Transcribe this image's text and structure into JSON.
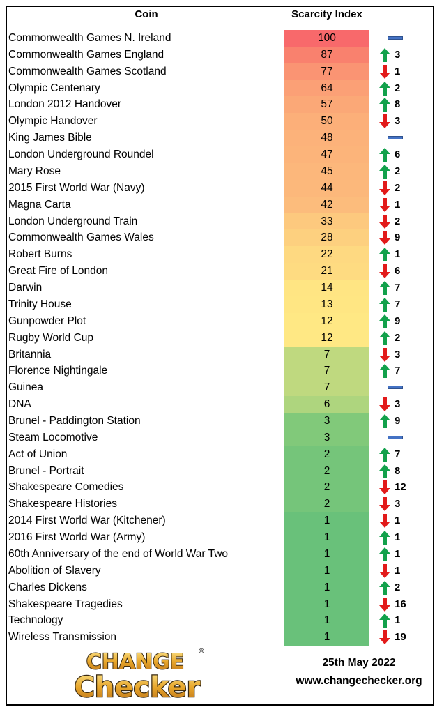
{
  "header": {
    "coin_label": "Coin",
    "index_label": "Scarcity Index"
  },
  "chart_data": {
    "type": "table",
    "columns": [
      "Coin",
      "Scarcity Index"
    ],
    "rows": [
      {
        "coin": "Commonwealth Games N. Ireland",
        "index": 100,
        "trend": "none",
        "change": "",
        "color": "#f8696b"
      },
      {
        "coin": "Commonwealth Games England",
        "index": 87,
        "trend": "up",
        "change": "3",
        "color": "#f9816e"
      },
      {
        "coin": "Commonwealth Games Scotland",
        "index": 77,
        "trend": "down",
        "change": "1",
        "color": "#fa9473"
      },
      {
        "coin": "Olympic Centenary",
        "index": 64,
        "trend": "up",
        "change": "2",
        "color": "#fba076"
      },
      {
        "coin": "London 2012 Handover",
        "index": 57,
        "trend": "up",
        "change": "8",
        "color": "#fba877"
      },
      {
        "coin": "Olympic Handover",
        "index": 50,
        "trend": "down",
        "change": "3",
        "color": "#fcaf79"
      },
      {
        "coin": "King James Bible",
        "index": 48,
        "trend": "none",
        "change": "",
        "color": "#fcb27a"
      },
      {
        "coin": "London Underground Roundel",
        "index": 47,
        "trend": "up",
        "change": "6",
        "color": "#fcb47a"
      },
      {
        "coin": "Mary Rose",
        "index": 45,
        "trend": "up",
        "change": "2",
        "color": "#fcb77b"
      },
      {
        "coin": "2015 First World War (Navy)",
        "index": 44,
        "trend": "down",
        "change": "2",
        "color": "#fcb87b"
      },
      {
        "coin": "Magna Carta",
        "index": 42,
        "trend": "down",
        "change": "1",
        "color": "#fcbc7c"
      },
      {
        "coin": "London Underground Train",
        "index": 33,
        "trend": "down",
        "change": "2",
        "color": "#fdc97e"
      },
      {
        "coin": "Commonwealth Games Wales",
        "index": 28,
        "trend": "down",
        "change": "9",
        "color": "#fdd07f"
      },
      {
        "coin": "Robert Burns",
        "index": 22,
        "trend": "up",
        "change": "1",
        "color": "#fed981"
      },
      {
        "coin": "Great Fire of London",
        "index": 21,
        "trend": "down",
        "change": "6",
        "color": "#fedb81"
      },
      {
        "coin": "Darwin",
        "index": 14,
        "trend": "up",
        "change": "7",
        "color": "#ffe583"
      },
      {
        "coin": "Trinity House",
        "index": 13,
        "trend": "up",
        "change": "7",
        "color": "#ffe683"
      },
      {
        "coin": "Gunpowder Plot",
        "index": 12,
        "trend": "up",
        "change": "9",
        "color": "#ffe884"
      },
      {
        "coin": "Rugby World Cup",
        "index": 12,
        "trend": "up",
        "change": "2",
        "color": "#ffe884"
      },
      {
        "coin": "Britannia",
        "index": 7,
        "trend": "down",
        "change": "3",
        "color": "#bfd97f"
      },
      {
        "coin": "Florence Nightingale",
        "index": 7,
        "trend": "up",
        "change": "7",
        "color": "#bfd97f"
      },
      {
        "coin": "Guinea",
        "index": 7,
        "trend": "none",
        "change": "",
        "color": "#bfd97f"
      },
      {
        "coin": "DNA",
        "index": 6,
        "trend": "down",
        "change": "3",
        "color": "#aed57e"
      },
      {
        "coin": "Brunel - Paddington Station",
        "index": 3,
        "trend": "up",
        "change": "9",
        "color": "#81c97a"
      },
      {
        "coin": "Steam Locomotive",
        "index": 3,
        "trend": "none",
        "change": "",
        "color": "#81c97a"
      },
      {
        "coin": "Act of Union",
        "index": 2,
        "trend": "up",
        "change": "7",
        "color": "#75c57a"
      },
      {
        "coin": "Brunel - Portrait",
        "index": 2,
        "trend": "up",
        "change": "8",
        "color": "#75c57a"
      },
      {
        "coin": "Shakespeare Comedies",
        "index": 2,
        "trend": "down",
        "change": "12",
        "color": "#75c57a"
      },
      {
        "coin": "Shakespeare Histories",
        "index": 2,
        "trend": "down",
        "change": "3",
        "color": "#75c57a"
      },
      {
        "coin": "2014 First World War (Kitchener)",
        "index": 1,
        "trend": "down",
        "change": "1",
        "color": "#69c17a"
      },
      {
        "coin": "2016 First World War (Army)",
        "index": 1,
        "trend": "up",
        "change": "1",
        "color": "#69c17a"
      },
      {
        "coin": "60th Anniversary of the end of World War Two",
        "index": 1,
        "trend": "up",
        "change": "1",
        "color": "#69c17a"
      },
      {
        "coin": "Abolition of Slavery",
        "index": 1,
        "trend": "down",
        "change": "1",
        "color": "#69c17a"
      },
      {
        "coin": "Charles Dickens",
        "index": 1,
        "trend": "up",
        "change": "2",
        "color": "#69c17a"
      },
      {
        "coin": "Shakespeare Tragedies",
        "index": 1,
        "trend": "down",
        "change": "16",
        "color": "#69c17a"
      },
      {
        "coin": "Technology",
        "index": 1,
        "trend": "up",
        "change": "1",
        "color": "#69c17a"
      },
      {
        "coin": "Wireless Transmission",
        "index": 1,
        "trend": "down",
        "change": "19",
        "color": "#69c17a"
      }
    ]
  },
  "colors": {
    "up_arrow": "#12a14b",
    "down_arrow": "#e21a1a",
    "no_change_dash": "#4472c4"
  },
  "logo": {
    "line1": "CHANGE",
    "line2": "Checker",
    "registered": "®"
  },
  "footer": {
    "date": "25th May 2022",
    "url": "www.changechecker.org"
  }
}
